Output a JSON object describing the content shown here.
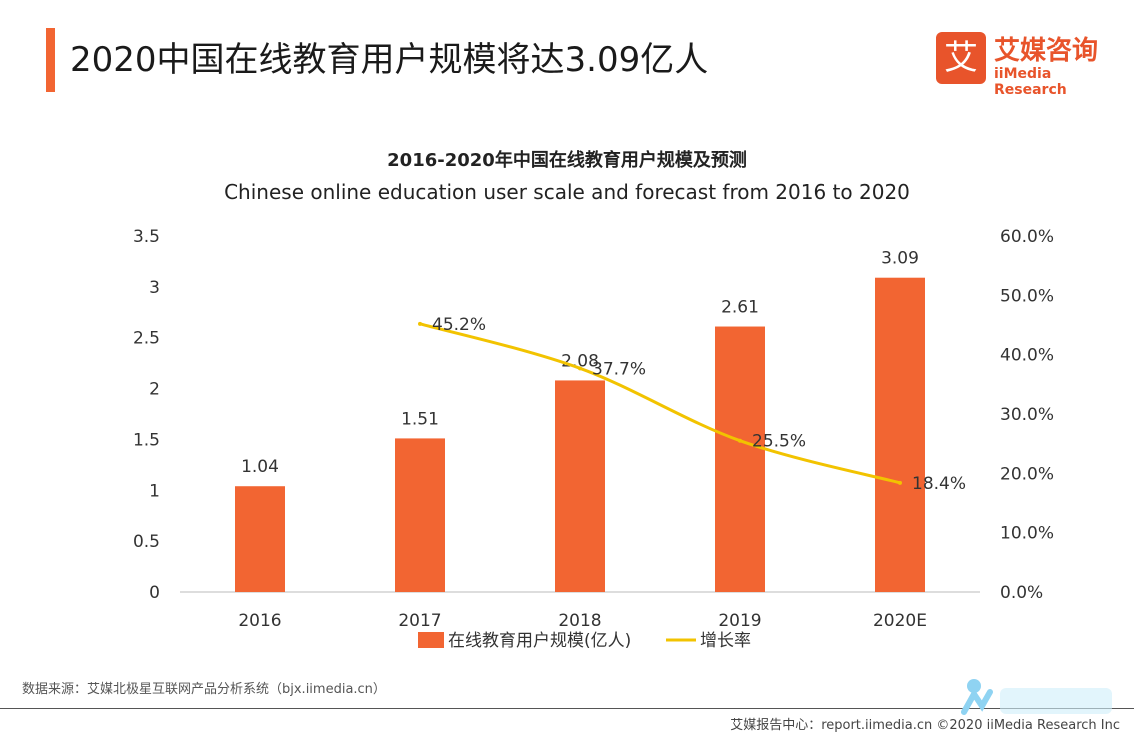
{
  "header": {
    "title": "2020中国在线教育用户规模将达3.09亿人",
    "logo_symbol": "艾",
    "logo_cn": "艾媒咨询",
    "logo_en": "iiMedia Research",
    "accent_color": "#f26532"
  },
  "chart_data": {
    "type": "bar",
    "title": "2016-2020年中国在线教育用户规模及预测",
    "subtitle": "Chinese online education user scale and forecast from 2016 to 2020",
    "categories": [
      "2016",
      "2017",
      "2018",
      "2019",
      "2020E"
    ],
    "series": [
      {
        "name": "在线教育用户规模(亿人)",
        "type": "bar",
        "axis": "left",
        "color": "#f26532",
        "values": [
          1.04,
          1.51,
          2.08,
          2.61,
          3.09
        ],
        "labels": [
          "1.04",
          "1.51",
          "2.08",
          "2.61",
          "3.09"
        ]
      },
      {
        "name": "增长率",
        "type": "line",
        "axis": "right",
        "color": "#f2c300",
        "values": [
          null,
          45.2,
          37.7,
          25.5,
          18.4
        ],
        "labels": [
          "",
          "45.2%",
          "37.7%",
          "25.5%",
          "18.4%"
        ]
      }
    ],
    "y_left": {
      "range": [
        0,
        3.5
      ],
      "ticks": [
        "0",
        "0.5",
        "1",
        "1.5",
        "2",
        "2.5",
        "3",
        "3.5"
      ]
    },
    "y_right": {
      "range": [
        0,
        60
      ],
      "ticks": [
        "0.0%",
        "10.0%",
        "20.0%",
        "30.0%",
        "40.0%",
        "50.0%",
        "60.0%"
      ]
    },
    "grid": false,
    "legend_position": "bottom"
  },
  "footer": {
    "source": "数据来源：艾媒北极星互联网产品分析系统（bjx.iimedia.cn）",
    "report": "艾媒报告中心：report.iimedia.cn ©2020 iiMedia Research Inc"
  }
}
